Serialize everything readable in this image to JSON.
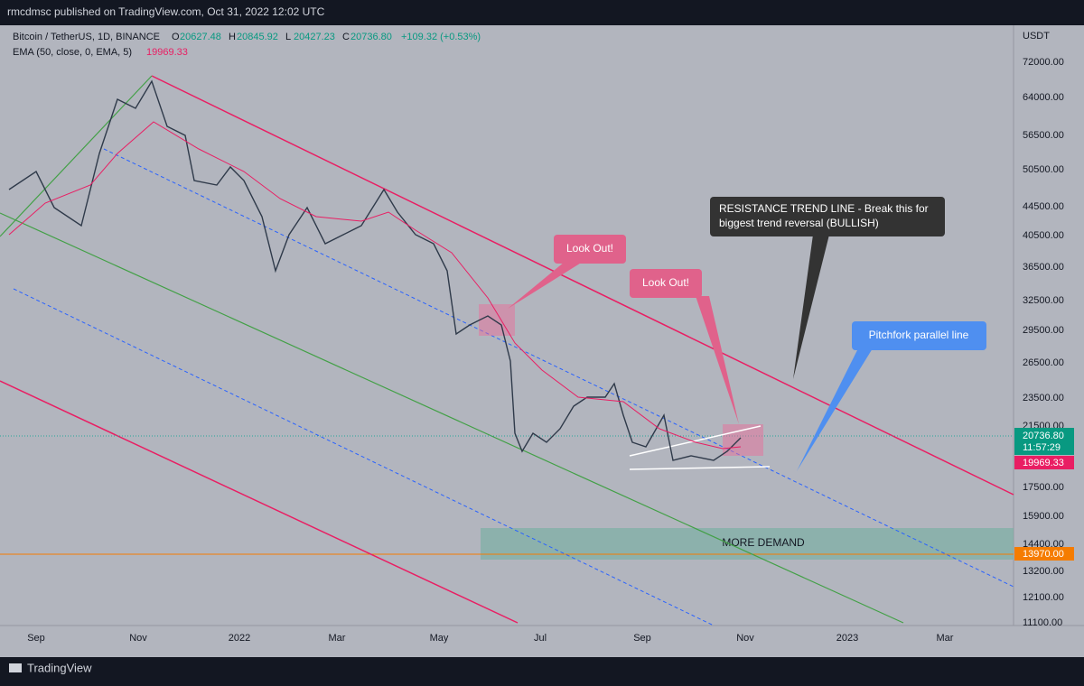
{
  "header": {
    "title": "rmcdmsc published on TradingView.com, Oct 31, 2022 12:02 UTC"
  },
  "legend": {
    "symbol": "Bitcoin / TetherUS, 1D, BINANCE",
    "ohlc": [
      {
        "label": "O",
        "value": "20627.48"
      },
      {
        "label": "H",
        "value": "20845.92"
      },
      {
        "label": "L",
        "value": "20427.23"
      },
      {
        "label": "C",
        "value": "20736.80"
      }
    ],
    "change": "+109.32 (+0.53%)",
    "indicator": "EMA (50, close, 0, EMA, 5)",
    "indicator_value": "19969.33"
  },
  "price_axis": {
    "unit": "USDT",
    "labels": [
      "72000.00",
      "64000.00",
      "56500.00",
      "50500.00",
      "44500.00",
      "40500.00",
      "36500.00",
      "32500.00",
      "29500.00",
      "26500.00",
      "23500.00",
      "21500.00",
      "17500.00",
      "15900.00",
      "14400.00",
      "13200.00",
      "12100.00",
      "11100.00"
    ],
    "tags": {
      "last_price": "20736.80",
      "countdown": "11:57:29",
      "ema": "19969.33",
      "level": "13970.00"
    }
  },
  "time_axis": {
    "labels": [
      "Sep",
      "Nov",
      "2022",
      "Mar",
      "May",
      "Jul",
      "Sep",
      "Nov",
      "2023",
      "Mar"
    ]
  },
  "annotations": {
    "look_out_1": "Look Out!",
    "look_out_2": "Look Out!",
    "resistance": [
      "RESISTANCE TREND LINE - Break this for",
      "biggest trend reversal (BULLISH)"
    ],
    "pitchfork": "Pitchfork parallel line",
    "demand": "MORE DEMAND"
  },
  "footer": {
    "brand": "TradingView"
  }
}
